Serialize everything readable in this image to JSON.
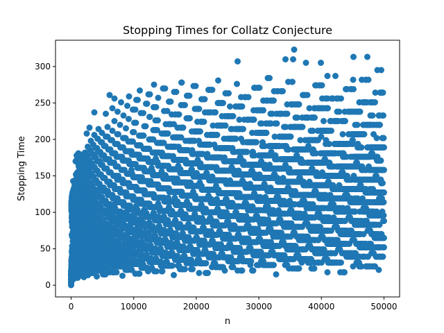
{
  "chart_data": {
    "type": "scatter",
    "title": "Stopping Times for Collatz Conjecture",
    "xlabel": "n",
    "ylabel": "Stopping Time",
    "xlim": [
      -2500,
      52500
    ],
    "ylim": [
      -16,
      336
    ],
    "x_ticks": [
      0,
      10000,
      20000,
      30000,
      40000,
      50000
    ],
    "y_ticks": [
      0,
      50,
      100,
      150,
      200,
      250,
      300
    ],
    "grid": false,
    "legend": "none",
    "series": [
      {
        "color": "#1f77b4",
        "marker": "circle",
        "data_rule": "Collatz total stopping time of each integer n",
        "n_start": 1,
        "n_end": 50000,
        "n_step": 1
      }
    ]
  }
}
